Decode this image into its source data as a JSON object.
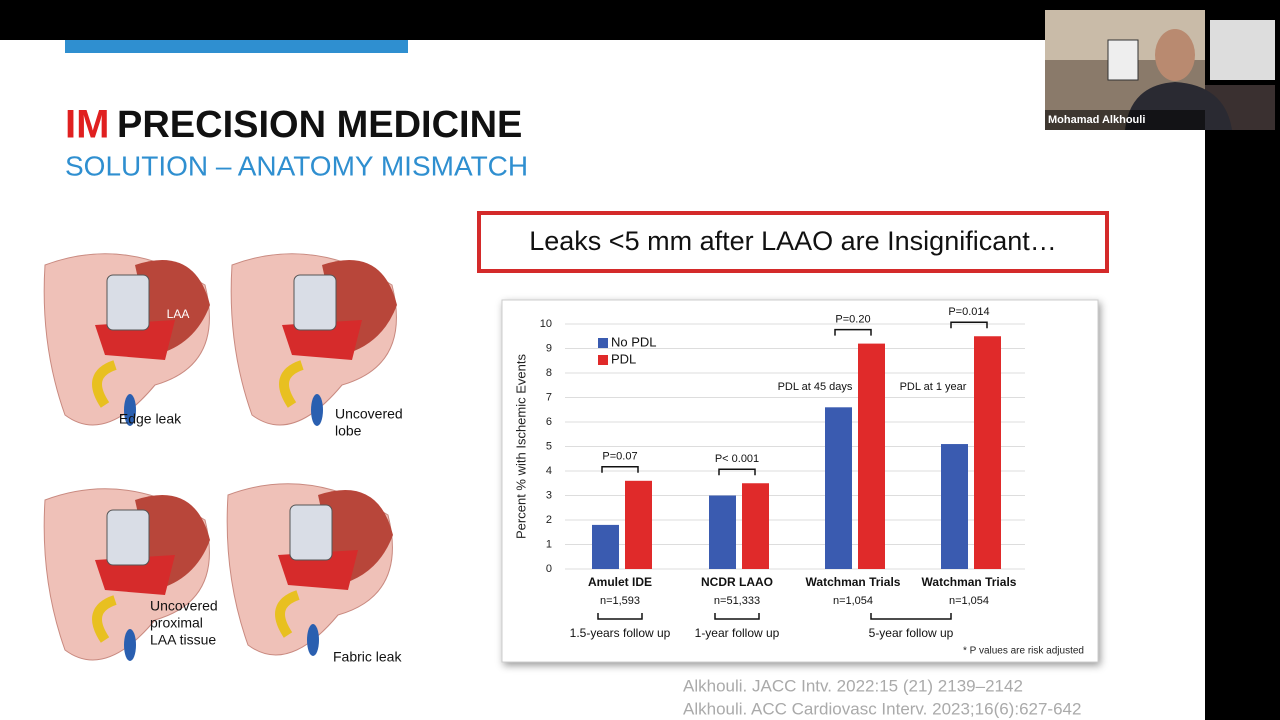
{
  "slide": {
    "title_red": "IM",
    "title_rest": "PRECISION MEDICINE",
    "subtitle": "SOLUTION – ANATOMY MISMATCH",
    "callout": "Leaks <5 mm after LAAO are Insignificant…",
    "figure_labels": {
      "laa": "LAA",
      "edge_leak": [
        "Edge leak"
      ],
      "uncovered_lobe": [
        "Uncovered",
        "lobe"
      ],
      "uncovered_proximal": [
        "Uncovered",
        "proximal",
        "LAA tissue"
      ],
      "fabric_leak": [
        "Fabric leak"
      ]
    },
    "citations": [
      "Alkhouli. JACC Intv. 2022:15 (21) 2139–2142",
      "Alkhouli. ACC Cardiovasc Interv. 2023;16(6):627-642"
    ]
  },
  "webcam": {
    "name": "Mohamad Alkhouli"
  },
  "chart_data": {
    "type": "bar",
    "y_label": "Percent % with Ischemic Events",
    "categories": [
      "Amulet IDE",
      "NCDR LAAO",
      "Watchman Trials",
      "Watchman Trials"
    ],
    "sample_sizes": [
      "n=1,593",
      "n=51,333",
      "n=1,054",
      "n=1,054"
    ],
    "p_values": [
      "P=0.07",
      "P< 0.001",
      "P=0.20",
      "P=0.014"
    ],
    "period_labels": [
      "PDL at 45 days",
      "PDL at 1 year"
    ],
    "follow_ups": [
      "1.5-years follow up",
      "1-year follow up",
      "5-year follow up"
    ],
    "footnote": "* P values are risk adjusted",
    "series": [
      {
        "name": "No PDL",
        "color": "#3a5bb0",
        "values": [
          1.8,
          3.0,
          6.6,
          5.1
        ]
      },
      {
        "name": "PDL",
        "color": "#e02a2a",
        "values": [
          3.6,
          3.5,
          9.2,
          9.5
        ]
      }
    ],
    "ylim": [
      0,
      10
    ],
    "yticks": [
      0,
      1,
      2,
      3,
      4,
      5,
      6,
      7,
      8,
      9,
      10
    ],
    "grid": true
  }
}
